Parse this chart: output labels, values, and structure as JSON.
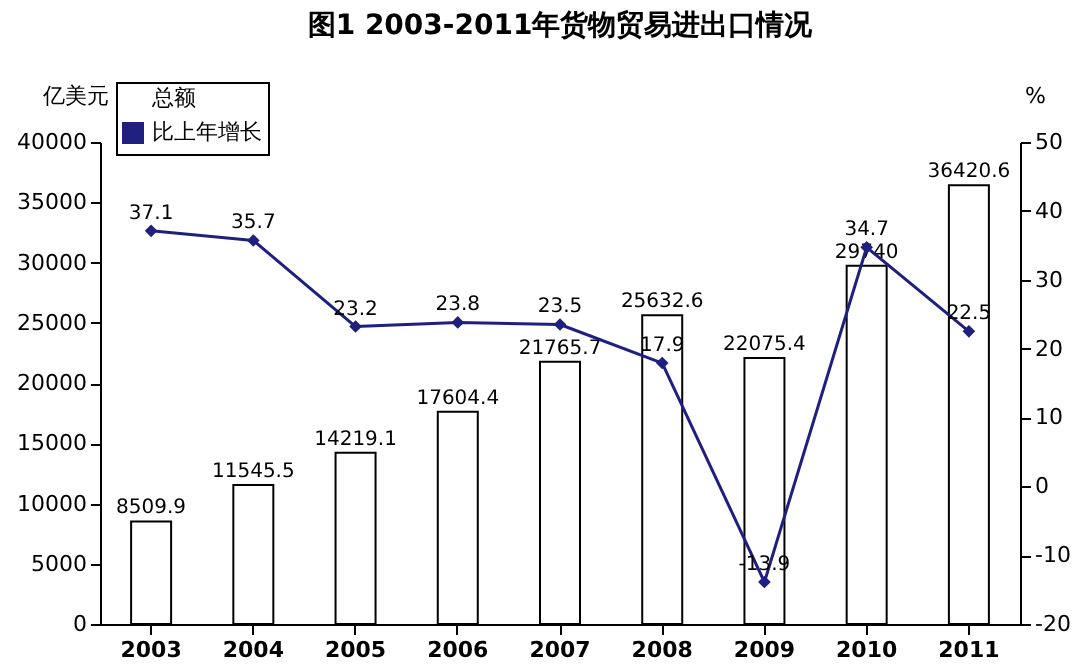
{
  "chart_data": {
    "type": "bar",
    "title": "图1   2003-2011年货物贸易进出口情况",
    "ylabel": "亿美元",
    "y2label": "%",
    "categories": [
      "2003",
      "2004",
      "2005",
      "2006",
      "2007",
      "2008",
      "2009",
      "2010",
      "2011"
    ],
    "series": [
      {
        "name": "总额",
        "color": "#ffffff",
        "values": [
          8509.9,
          11545.5,
          14219.1,
          17604.4,
          21765.7,
          25632.6,
          22075.4,
          29740.0,
          36420.6
        ]
      },
      {
        "name": "比上年增长",
        "type": "line",
        "axis": "y2",
        "color": "#1f1f80",
        "values": [
          37.1,
          35.7,
          23.2,
          23.8,
          23.5,
          17.9,
          -13.9,
          34.7,
          22.5
        ]
      }
    ],
    "ylim": [
      0,
      40000
    ],
    "yticks": [
      0,
      5000,
      10000,
      15000,
      20000,
      25000,
      30000,
      35000,
      40000
    ],
    "y2lim": [
      -20,
      50
    ],
    "y2ticks": [
      -20,
      -10,
      0,
      10,
      20,
      30,
      40,
      50
    ],
    "data_labels": true,
    "grid": false,
    "legend": "top left",
    "marker": "diamond",
    "line_style": "solid"
  }
}
